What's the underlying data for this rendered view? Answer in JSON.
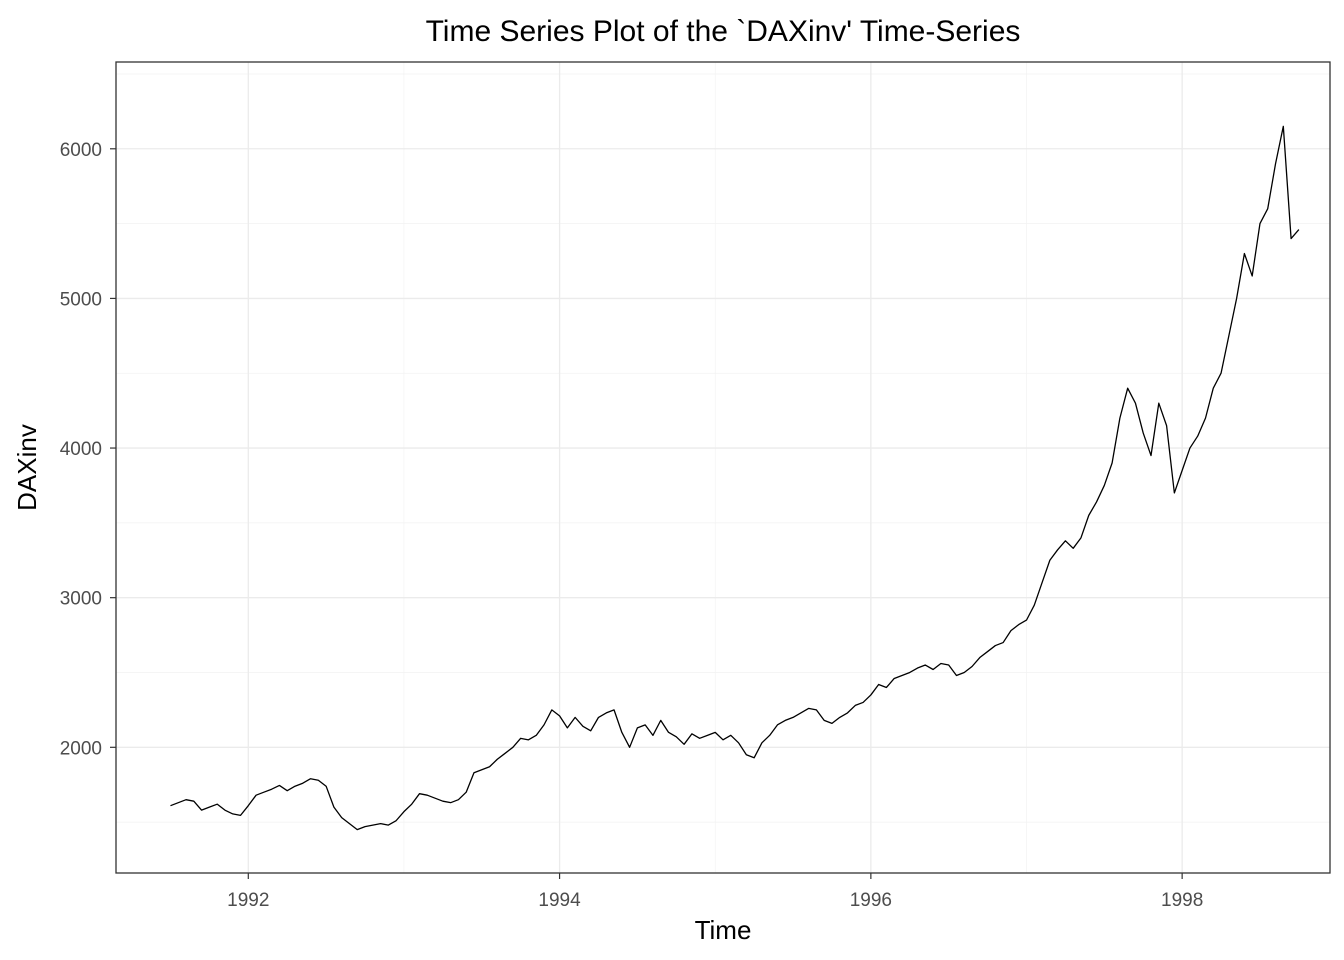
{
  "chart_data": {
    "type": "line",
    "title": "Time Series Plot of the `DAXinv' Time-Series",
    "xlabel": "Time",
    "ylabel": "DAXinv",
    "xlim": [
      1991.15,
      1998.95
    ],
    "ylim": [
      1160,
      6580
    ],
    "x_ticks": [
      1992,
      1994,
      1996,
      1998
    ],
    "y_ticks": [
      2000,
      3000,
      4000,
      5000,
      6000
    ],
    "x_tick_labels": [
      "1992",
      "1994",
      "1996",
      "1998"
    ],
    "y_tick_labels": [
      "2000",
      "3000",
      "4000",
      "5000",
      "6000"
    ],
    "grid": true,
    "line_color": "#000000",
    "series": [
      {
        "x": [
          1991.5,
          1991.55,
          1991.6,
          1991.65,
          1991.7,
          1991.75,
          1991.8,
          1991.85,
          1991.9,
          1991.95,
          1992.0,
          1992.05,
          1992.1,
          1992.15,
          1992.2,
          1992.25,
          1992.3,
          1992.35,
          1992.4,
          1992.45,
          1992.5,
          1992.55,
          1992.6,
          1992.65,
          1992.7,
          1992.75,
          1992.8,
          1992.85,
          1992.9,
          1992.95,
          1993.0,
          1993.05,
          1993.1,
          1993.15,
          1993.2,
          1993.25,
          1993.3,
          1993.35,
          1993.4,
          1993.45,
          1993.5,
          1993.55,
          1993.6,
          1993.65,
          1993.7,
          1993.75,
          1993.8,
          1993.85,
          1993.9,
          1993.95,
          1994.0,
          1994.05,
          1994.1,
          1994.15,
          1994.2,
          1994.25,
          1994.3,
          1994.35,
          1994.4,
          1994.45,
          1994.5,
          1994.55,
          1994.6,
          1994.65,
          1994.7,
          1994.75,
          1994.8,
          1994.85,
          1994.9,
          1994.95,
          1995.0,
          1995.05,
          1995.1,
          1995.15,
          1995.2,
          1995.25,
          1995.3,
          1995.35,
          1995.4,
          1995.45,
          1995.5,
          1995.55,
          1995.6,
          1995.65,
          1995.7,
          1995.75,
          1995.8,
          1995.85,
          1995.9,
          1995.95,
          1996.0,
          1996.05,
          1996.1,
          1996.15,
          1996.2,
          1996.25,
          1996.3,
          1996.35,
          1996.4,
          1996.45,
          1996.5,
          1996.55,
          1996.6,
          1996.65,
          1996.7,
          1996.75,
          1996.8,
          1996.85,
          1996.9,
          1996.95,
          1997.0,
          1997.05,
          1997.1,
          1997.15,
          1997.2,
          1997.25,
          1997.3,
          1997.35,
          1997.4,
          1997.45,
          1997.5,
          1997.55,
          1997.6,
          1997.65,
          1997.7,
          1997.75,
          1997.8,
          1997.85,
          1997.9,
          1997.95,
          1998.0,
          1998.05,
          1998.1,
          1998.15,
          1998.2,
          1998.25,
          1998.3,
          1998.35,
          1998.4,
          1998.45,
          1998.5,
          1998.55,
          1998.6,
          1998.65,
          1998.7,
          1998.75
        ],
        "y": [
          1610,
          1630,
          1650,
          1640,
          1580,
          1600,
          1620,
          1580,
          1555,
          1545,
          1610,
          1680,
          1700,
          1720,
          1745,
          1710,
          1740,
          1760,
          1790,
          1780,
          1740,
          1600,
          1530,
          1490,
          1450,
          1470,
          1480,
          1490,
          1480,
          1510,
          1570,
          1620,
          1690,
          1680,
          1660,
          1640,
          1630,
          1650,
          1700,
          1830,
          1850,
          1870,
          1920,
          1960,
          2000,
          2060,
          2050,
          2080,
          2150,
          2250,
          2210,
          2130,
          2200,
          2140,
          2110,
          2200,
          2230,
          2250,
          2100,
          2000,
          2130,
          2150,
          2080,
          2180,
          2100,
          2070,
          2020,
          2090,
          2060,
          2080,
          2100,
          2050,
          2080,
          2030,
          1950,
          1930,
          2030,
          2080,
          2150,
          2180,
          2200,
          2230,
          2260,
          2250,
          2180,
          2160,
          2200,
          2230,
          2280,
          2300,
          2350,
          2420,
          2400,
          2460,
          2480,
          2500,
          2530,
          2550,
          2520,
          2560,
          2550,
          2480,
          2500,
          2540,
          2600,
          2640,
          2680,
          2700,
          2780,
          2820,
          2850,
          2950,
          3100,
          3250,
          3320,
          3380,
          3330,
          3400,
          3550,
          3640,
          3750,
          3900,
          4200,
          4400,
          4300,
          4100,
          3950,
          4300,
          4150,
          3700,
          3850,
          4000,
          4080,
          4200,
          4400,
          4500,
          4750,
          5000,
          5300,
          5150,
          5500,
          5600,
          5900,
          6150,
          5400,
          5460
        ]
      }
    ]
  }
}
